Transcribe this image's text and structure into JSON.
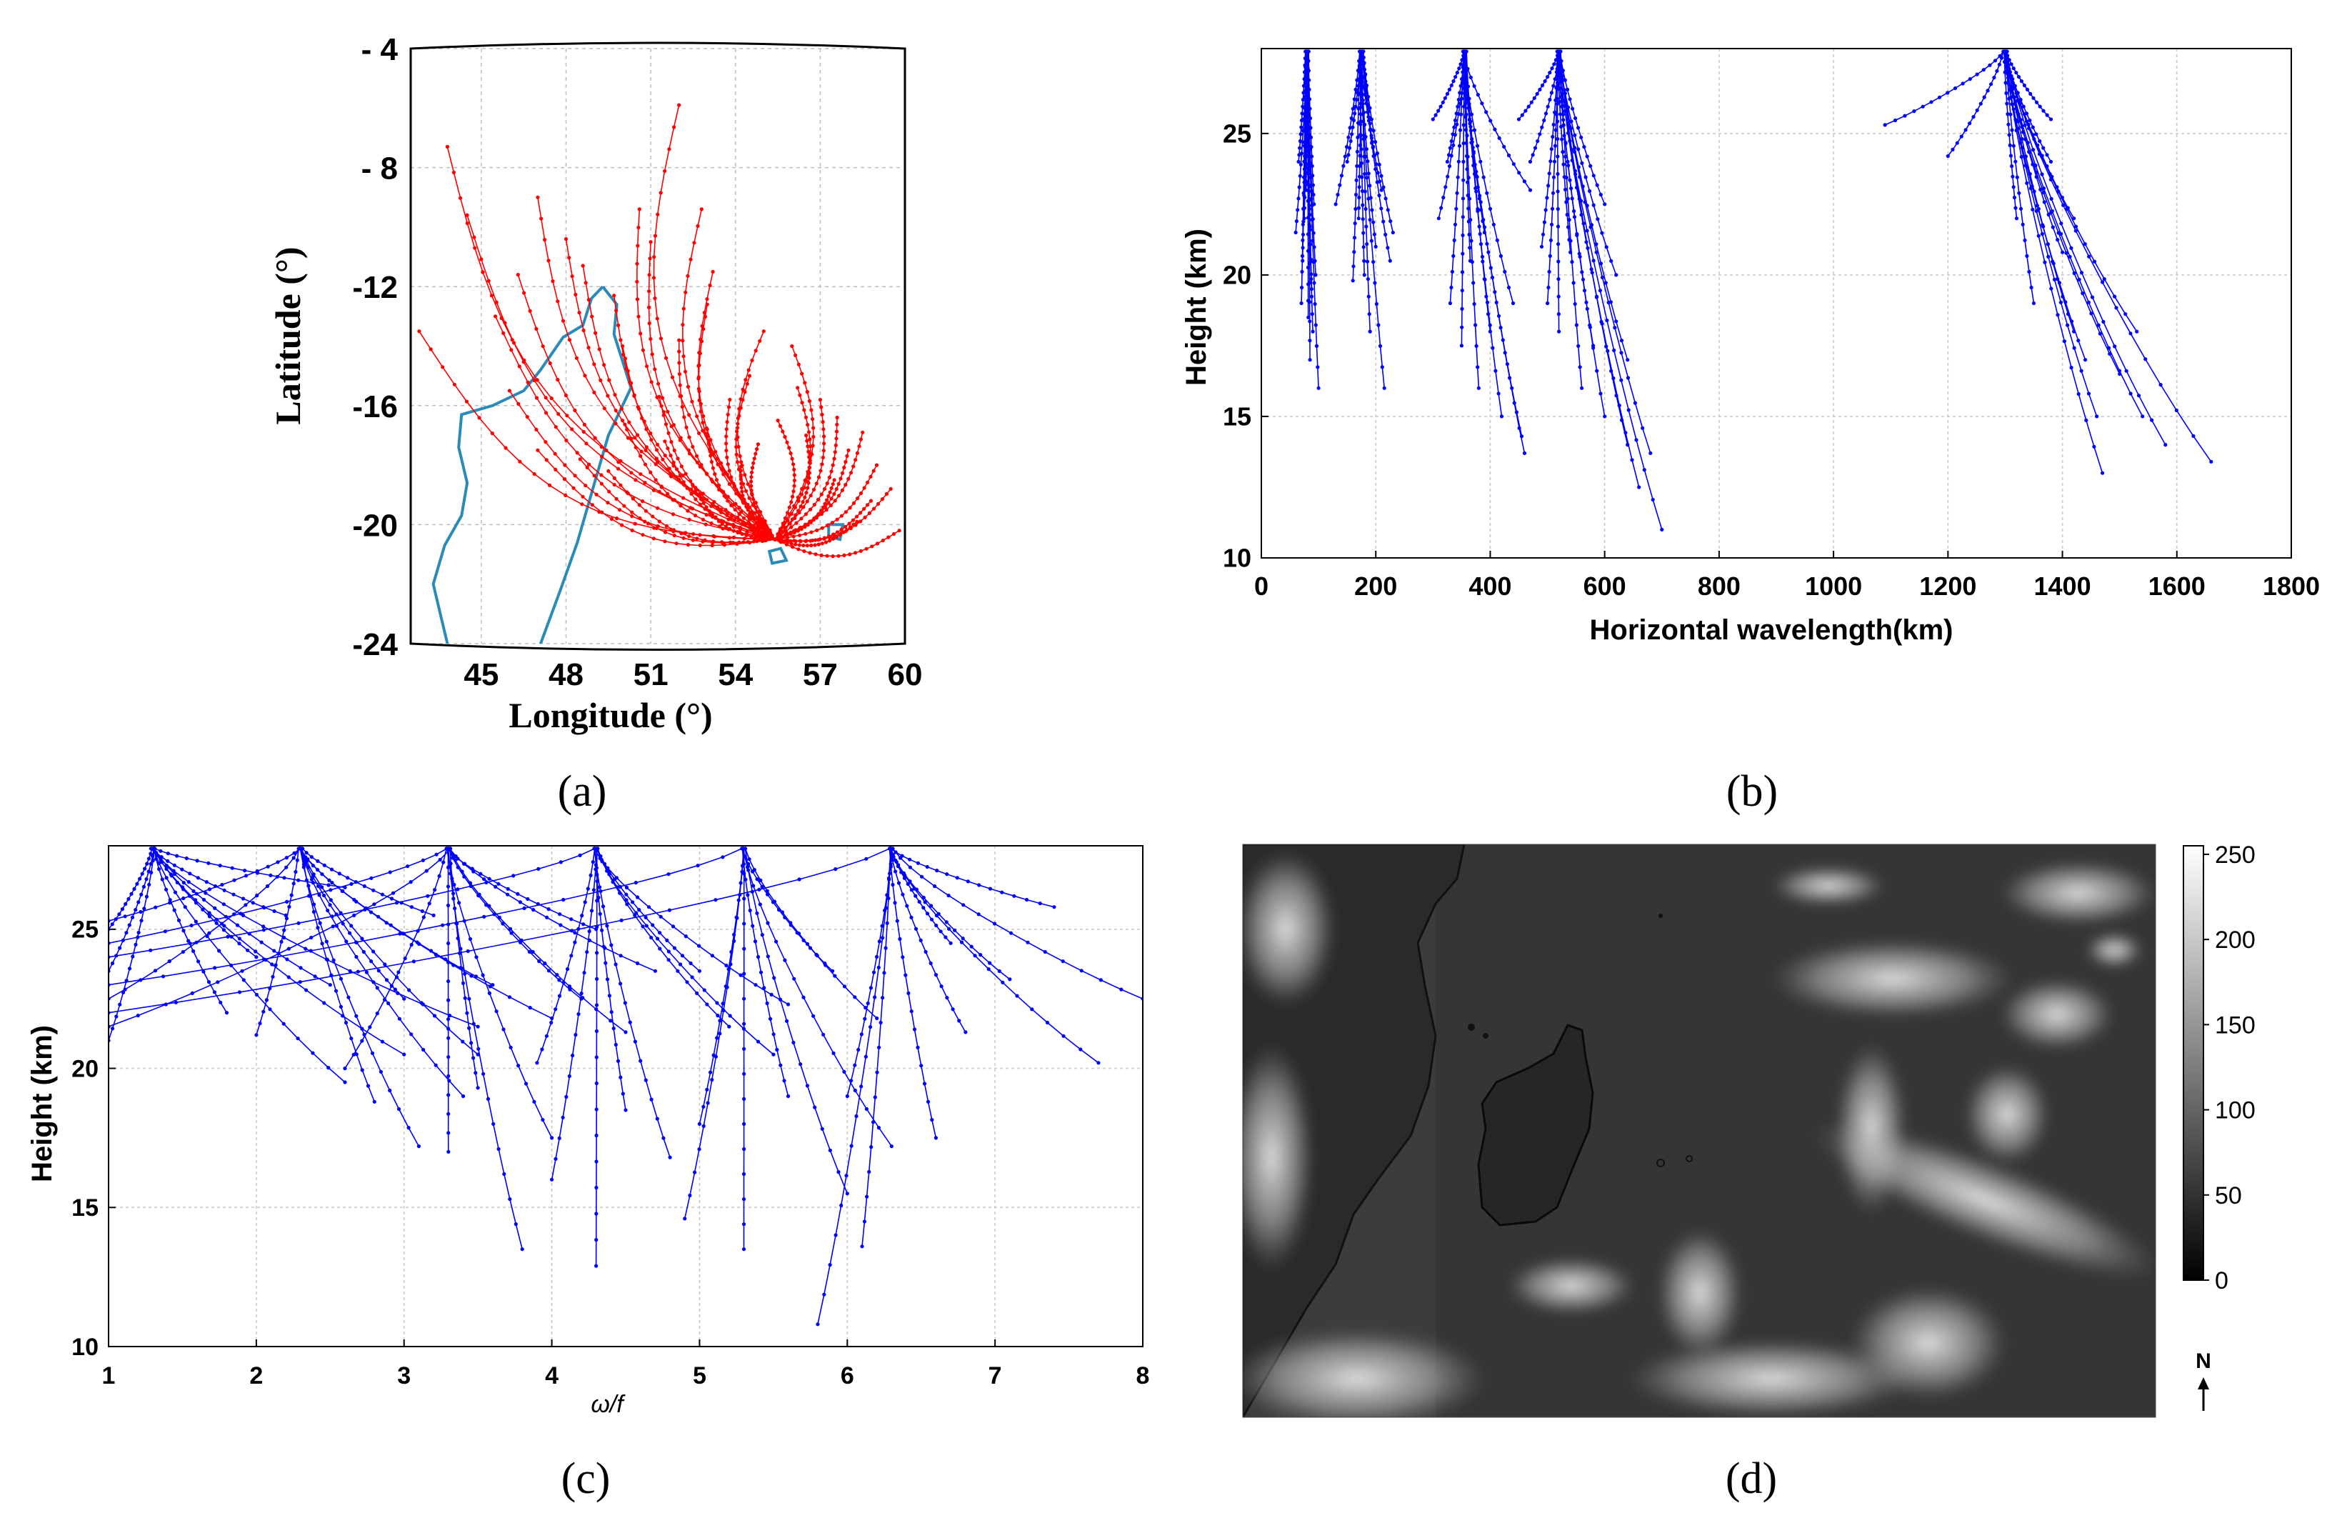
{
  "figure_labels": {
    "a": "(a)",
    "b": "(b)",
    "c": "(c)",
    "d": "(d)"
  },
  "chart_data": [
    {
      "id": "a",
      "type": "map-rays",
      "title": "",
      "xlabel": "Longitude (°)",
      "ylabel": "Latitude (°)",
      "xlim": [
        42.5,
        60
      ],
      "ylim": [
        -24,
        -4
      ],
      "xticks": [
        45,
        48,
        51,
        54,
        57,
        60
      ],
      "xtick_labels": [
        "45",
        "48",
        "51",
        "54",
        "57",
        "60"
      ],
      "yticks": [
        -4,
        -8,
        -12,
        -16,
        -20,
        -24
      ],
      "ytick_labels": [
        "- 4",
        "- 8",
        "-12",
        "-16",
        "-20",
        "-24"
      ],
      "source_point": [
        55.4,
        -20.5
      ],
      "ray_color": "#ff0000",
      "coast_color": "#2a8ab8",
      "coast_madagascar": [
        [
          49.3,
          -12.0
        ],
        [
          49.8,
          -12.6
        ],
        [
          49.7,
          -13.6
        ],
        [
          50.3,
          -15.4
        ],
        [
          49.5,
          -17.0
        ],
        [
          49.1,
          -18.3
        ],
        [
          48.4,
          -20.6
        ],
        [
          47.8,
          -22.2
        ],
        [
          47.1,
          -24.0
        ]
      ],
      "coast_mainland": [
        [
          49.3,
          -12.0
        ],
        [
          48.9,
          -12.4
        ],
        [
          48.6,
          -13.3
        ],
        [
          47.9,
          -13.7
        ],
        [
          47.1,
          -14.8
        ],
        [
          46.5,
          -15.5
        ],
        [
          45.4,
          -16.0
        ],
        [
          44.3,
          -16.3
        ],
        [
          44.2,
          -17.4
        ],
        [
          44.5,
          -18.6
        ],
        [
          44.3,
          -19.7
        ],
        [
          43.7,
          -20.7
        ],
        [
          43.3,
          -22.0
        ],
        [
          43.8,
          -24.0
        ]
      ],
      "reunion": [
        [
          55.2,
          -20.9
        ],
        [
          55.6,
          -20.8
        ],
        [
          55.8,
          -21.2
        ],
        [
          55.3,
          -21.3
        ],
        [
          55.2,
          -20.9
        ]
      ],
      "mauritius": [
        [
          57.3,
          -20.0
        ],
        [
          57.8,
          -20.0
        ],
        [
          57.7,
          -20.5
        ],
        [
          57.3,
          -20.4
        ],
        [
          57.3,
          -20.0
        ]
      ],
      "rays": [
        [
          52.0,
          -5.9
        ],
        [
          43.8,
          -7.3
        ],
        [
          47.0,
          -9.0
        ],
        [
          42.8,
          -13.5
        ],
        [
          48.6,
          -11.3
        ],
        [
          51.0,
          -10.5
        ],
        [
          53.0,
          -12.6
        ],
        [
          50.0,
          -14.0
        ],
        [
          47.0,
          -17.5
        ],
        [
          50.0,
          -16.5
        ],
        [
          51.5,
          -17.2
        ],
        [
          53.0,
          -16.8
        ],
        [
          54.5,
          -15.0
        ],
        [
          56.0,
          -14.0
        ],
        [
          57.0,
          -15.8
        ],
        [
          58.0,
          -17.5
        ],
        [
          59.5,
          -18.8
        ],
        [
          59.8,
          -20.2
        ],
        [
          48.5,
          -17.8
        ],
        [
          52.5,
          -18.7
        ],
        [
          54.2,
          -17.9
        ],
        [
          55.5,
          -16.5
        ],
        [
          56.5,
          -17.0
        ],
        [
          49.5,
          -18.2
        ],
        [
          57.5,
          -18.5
        ],
        [
          58.8,
          -19.2
        ],
        [
          46.0,
          -15.5
        ],
        [
          45.5,
          -13.0
        ],
        [
          55.0,
          -13.5
        ],
        [
          53.8,
          -15.8
        ],
        [
          52.0,
          -13.8
        ],
        [
          57.6,
          -16.4
        ],
        [
          58.5,
          -16.9
        ],
        [
          53.2,
          -11.5
        ],
        [
          48.0,
          -10.4
        ],
        [
          50.6,
          -9.4
        ],
        [
          46.3,
          -11.6
        ],
        [
          44.5,
          -9.6
        ],
        [
          49.7,
          -12.3
        ],
        [
          54.8,
          -17.3
        ],
        [
          56.2,
          -15.4
        ],
        [
          59.0,
          -18.0
        ],
        [
          51.3,
          -15.7
        ],
        [
          58.3,
          -19.9
        ],
        [
          52.8,
          -9.4
        ]
      ]
    },
    {
      "id": "b",
      "type": "line",
      "title": "",
      "xlabel": "Horizontal wavelength(km)",
      "ylabel": "Height (km)",
      "xlim": [
        0,
        1800
      ],
      "ylim": [
        10,
        28
      ],
      "xticks": [
        0,
        200,
        400,
        600,
        800,
        1000,
        1200,
        1400,
        1600,
        1800
      ],
      "xtick_labels": [
        "0",
        "200",
        "400",
        "600",
        "800",
        "1000",
        "1200",
        "1400",
        "1600",
        "1800"
      ],
      "yticks": [
        10,
        15,
        20,
        25
      ],
      "ytick_labels": [
        "10",
        "15",
        "20",
        "25"
      ],
      "line_color": "#0000ff",
      "grid": true,
      "clusters": [
        {
          "x0": 80,
          "ends": [
            [
              60,
              21.5
            ],
            [
              100,
              16
            ],
            [
              70,
              19
            ],
            [
              90,
              18
            ],
            [
              75,
              22
            ],
            [
              95,
              20
            ],
            [
              65,
              24
            ],
            [
              85,
              17
            ],
            [
              78,
              23
            ],
            [
              88,
              19.5
            ],
            [
              72,
              20.5
            ],
            [
              92,
              22.5
            ],
            [
              82,
              18.5
            ]
          ]
        },
        {
          "x0": 175,
          "ends": [
            [
              130,
              22.5
            ],
            [
              150,
              24
            ],
            [
              200,
              21
            ],
            [
              225,
              20.5
            ],
            [
              215,
              16
            ],
            [
              190,
              18
            ],
            [
              170,
              22
            ],
            [
              210,
              23
            ],
            [
              160,
              19.8
            ],
            [
              230,
              21.5
            ],
            [
              195,
              24.5
            ],
            [
              180,
              20
            ]
          ]
        },
        {
          "x0": 355,
          "ends": [
            [
              300,
              25.5
            ],
            [
              310,
              22
            ],
            [
              330,
              19
            ],
            [
              350,
              17.5
            ],
            [
              380,
              16
            ],
            [
              420,
              15
            ],
            [
              460,
              13.7
            ],
            [
              455,
              14.3
            ],
            [
              400,
              18
            ],
            [
              365,
              20.5
            ],
            [
              440,
              19
            ],
            [
              325,
              24
            ],
            [
              390,
              21.5
            ],
            [
              470,
              23
            ]
          ]
        },
        {
          "x0": 520,
          "ends": [
            [
              470,
              24
            ],
            [
              490,
              21
            ],
            [
              500,
              19
            ],
            [
              520,
              18
            ],
            [
              560,
              16
            ],
            [
              600,
              15
            ],
            [
              640,
              14
            ],
            [
              660,
              12.5
            ],
            [
              700,
              11
            ],
            [
              680,
              13.7
            ],
            [
              620,
              20
            ],
            [
              600,
              22.5
            ],
            [
              640,
              17
            ],
            [
              540,
              20.8
            ],
            [
              580,
              17.5
            ],
            [
              450,
              25.5
            ]
          ]
        },
        {
          "x0": 1300,
          "ends": [
            [
              1090,
              25.3
            ],
            [
              1200,
              24.2
            ],
            [
              1380,
              24
            ],
            [
              1400,
              20.8
            ],
            [
              1350,
              19
            ],
            [
              1420,
              18
            ],
            [
              1530,
              18
            ],
            [
              1460,
              15
            ],
            [
              1470,
              13
            ],
            [
              1540,
              15
            ],
            [
              1580,
              14
            ],
            [
              1660,
              13.4
            ],
            [
              1420,
              22
            ],
            [
              1440,
              17
            ],
            [
              1320,
              22
            ],
            [
              1380,
              25.5
            ],
            [
              1500,
              16.5
            ]
          ]
        }
      ]
    },
    {
      "id": "c",
      "type": "line",
      "title": "",
      "xlabel": "ω/f",
      "ylabel": "Height (km)",
      "xlim": [
        1,
        8
      ],
      "ylim": [
        10,
        28
      ],
      "xticks": [
        1,
        2,
        3,
        4,
        5,
        6,
        7,
        8
      ],
      "xtick_labels": [
        "1",
        "2",
        "3",
        "4",
        "5",
        "6",
        "7",
        "8"
      ],
      "yticks": [
        10,
        15,
        20,
        25
      ],
      "ytick_labels": [
        "10",
        "15",
        "20",
        "25"
      ],
      "line_color": "#0000ff",
      "grid": true,
      "clusters": [
        {
          "x0": 1.3,
          "ends": [
            [
              1.0,
              25.0
            ],
            [
              1.0,
              23.5
            ],
            [
              1.0,
              21.0
            ],
            [
              2.6,
              26.5
            ],
            [
              2.0,
              24.0
            ],
            [
              2.5,
              23.0
            ],
            [
              1.8,
              22.0
            ],
            [
              3.0,
              20.5
            ],
            [
              2.6,
              19.5
            ],
            [
              3.5,
              21.5
            ],
            [
              2.2,
              25.5
            ]
          ]
        },
        {
          "x0": 2.3,
          "ends": [
            [
              1.0,
              25.3
            ],
            [
              1.0,
              22.5
            ],
            [
              3.1,
              17.2
            ],
            [
              3.5,
              20.5
            ],
            [
              2.8,
              18.8
            ],
            [
              3.6,
              23.0
            ],
            [
              3.2,
              25.5
            ],
            [
              2.0,
              21.2
            ],
            [
              4.0,
              21.8
            ],
            [
              3.0,
              22.5
            ],
            [
              3.4,
              19.0
            ]
          ]
        },
        {
          "x0": 3.3,
          "ends": [
            [
              1.0,
              24.5
            ],
            [
              1.0,
              21.5
            ],
            [
              3.3,
              17.0
            ],
            [
              4.5,
              21.3
            ],
            [
              4.2,
              22.5
            ],
            [
              3.8,
              13.5
            ],
            [
              4.0,
              17.5
            ],
            [
              4.7,
              23.5
            ],
            [
              3.5,
              19.3
            ],
            [
              4.3,
              25.0
            ],
            [
              2.6,
              20.0
            ]
          ]
        },
        {
          "x0": 4.3,
          "ends": [
            [
              1.0,
              24.0
            ],
            [
              4.3,
              12.9
            ],
            [
              4.0,
              16.0
            ],
            [
              5.5,
              20.5
            ],
            [
              5.2,
              21.5
            ],
            [
              4.5,
              18.5
            ],
            [
              5.0,
              23.5
            ],
            [
              3.9,
              20.2
            ],
            [
              5.6,
              22.3
            ],
            [
              4.8,
              16.8
            ]
          ]
        },
        {
          "x0": 5.3,
          "ends": [
            [
              1.0,
              23.0
            ],
            [
              5.3,
              13.5
            ],
            [
              6.0,
              15.5
            ],
            [
              6.2,
              21.8
            ],
            [
              5.6,
              19.0
            ],
            [
              4.9,
              14.6
            ],
            [
              5.9,
              23.5
            ],
            [
              6.3,
              17.2
            ],
            [
              5.0,
              18.0
            ]
          ]
        },
        {
          "x0": 6.3,
          "ends": [
            [
              1.0,
              22.0
            ],
            [
              5.8,
              10.8
            ],
            [
              6.1,
              13.6
            ],
            [
              7.4,
              25.8
            ],
            [
              8.0,
              22.5
            ],
            [
              6.8,
              21.3
            ],
            [
              7.7,
              20.2
            ],
            [
              6.6,
              17.5
            ],
            [
              6.0,
              19.0
            ],
            [
              7.1,
              23.2
            ],
            [
              6.7,
              24.5
            ]
          ]
        }
      ]
    },
    {
      "id": "d",
      "type": "heatmap",
      "title": "",
      "colorbar_range": [
        0,
        255
      ],
      "colorbar_ticks": [
        0,
        50,
        100,
        150,
        200,
        250
      ],
      "colorbar_tick_labels": [
        "0",
        "50",
        "100",
        "150",
        "200",
        "250"
      ],
      "north_label": "N"
    }
  ]
}
